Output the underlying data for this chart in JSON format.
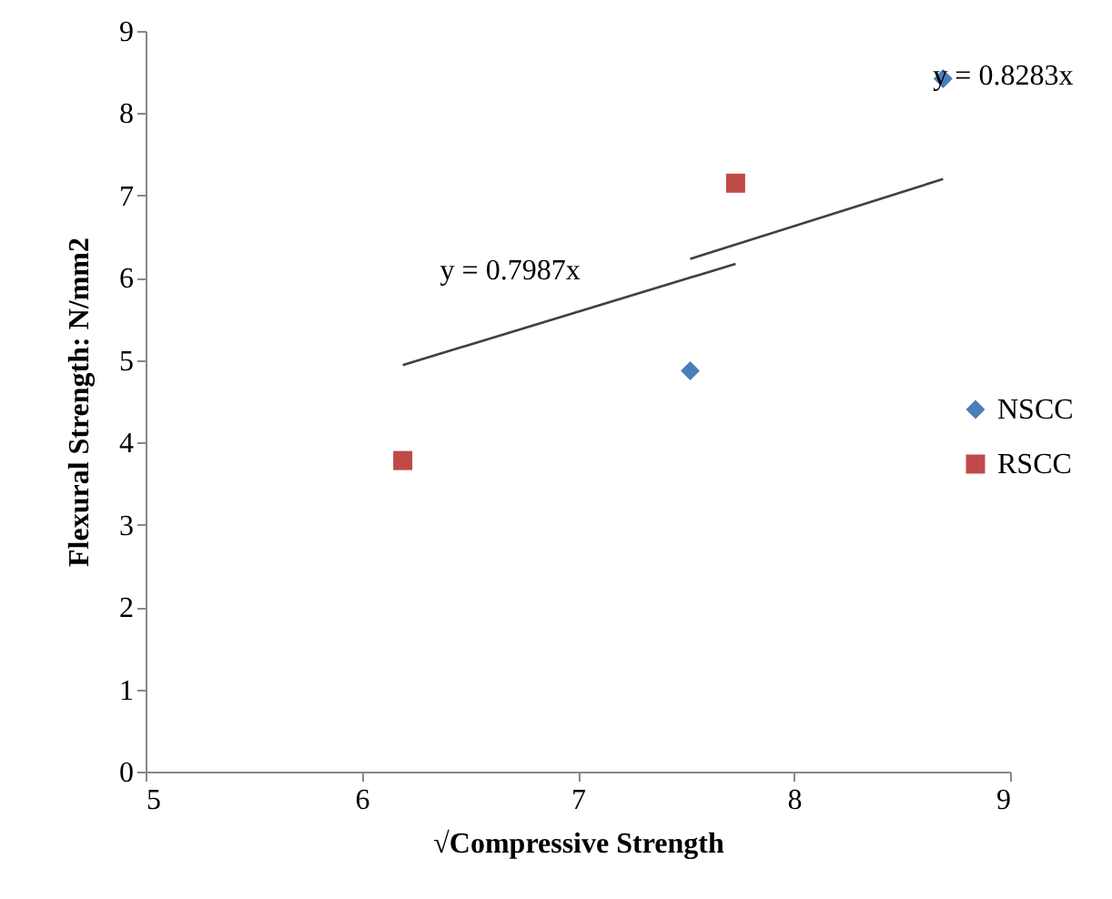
{
  "chart_data": {
    "type": "scatter",
    "xlabel": "√Compressive Strength",
    "ylabel": "Flexural Strength: N/mm2",
    "xlim": [
      5,
      9
    ],
    "xticks": [
      {
        "value": 5,
        "label": "5"
      },
      {
        "value": 6,
        "label": "6"
      },
      {
        "value": 7,
        "label": "7"
      },
      {
        "value": 8,
        "label": "8"
      },
      {
        "value": 9,
        "label": "9"
      }
    ],
    "ylim": [
      0,
      9
    ],
    "yticks": [
      0,
      1,
      2,
      3,
      4,
      5,
      6,
      7,
      8,
      9
    ],
    "grid": false,
    "legend": "right",
    "series": [
      {
        "name": "NSCC",
        "color": "#4a7ebb",
        "marker": "diamond",
        "x": [
          7.52,
          8.69
        ],
        "values": [
          4.87,
          8.42
        ]
      },
      {
        "name": "RSCC",
        "color": "#be4b48",
        "marker": "square",
        "x": [
          6.19,
          7.73
        ],
        "values": [
          3.78,
          7.15
        ]
      },
      {
        "type": "line",
        "color": "#404040",
        "x": [
          7.52,
          8.69
        ],
        "values": [
          6.23,
          7.2
        ]
      },
      {
        "type": "line",
        "color": "#404040",
        "x": [
          6.19,
          7.73
        ],
        "values": [
          4.94,
          6.17
        ]
      }
    ],
    "annotations": [
      "y = 0.8283x",
      "y = 0.7987x"
    ]
  }
}
